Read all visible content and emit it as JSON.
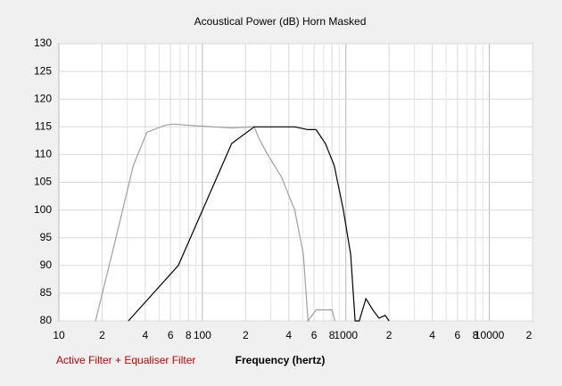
{
  "chart_data": {
    "type": "line",
    "title": "Acoustical Power (dB)   Horn   Masked",
    "xlabel": "Frequency (hertz)",
    "note": "Active Filter + Equaliser Filter",
    "log_x": true,
    "xlim": [
      10,
      20000
    ],
    "ylim": [
      80,
      130
    ],
    "yticks": [
      80,
      85,
      90,
      95,
      100,
      105,
      110,
      115,
      120,
      125,
      130
    ],
    "xticks": [
      10,
      {
        "value": 20,
        "label": "2"
      },
      {
        "value": 40,
        "label": "4"
      },
      {
        "value": 60,
        "label": "6"
      },
      {
        "value": 80,
        "label": "8"
      },
      100,
      {
        "value": 200,
        "label": "2"
      },
      {
        "value": 400,
        "label": "4"
      },
      {
        "value": 600,
        "label": "6"
      },
      {
        "value": 800,
        "label": "8"
      },
      1000,
      {
        "value": 2000,
        "label": "2"
      },
      {
        "value": 4000,
        "label": "4"
      },
      {
        "value": 6000,
        "label": "6"
      },
      {
        "value": 8000,
        "label": "8"
      },
      10000,
      {
        "value": 20000,
        "label": "2"
      }
    ],
    "xgrid_minor": [
      30,
      50,
      70,
      90,
      300,
      500,
      700,
      900,
      3000,
      5000,
      7000,
      9000
    ],
    "grid": true,
    "series": [
      {
        "name": "Active Filter",
        "color": "#a0a0a0",
        "x": [
          18,
          25,
          33,
          41,
          55,
          63,
          90,
          160,
          230,
          247,
          285,
          355,
          440,
          506,
          545,
          620,
          670,
          800,
          840
        ],
        "values": [
          80,
          95,
          108,
          114,
          115.3,
          115.5,
          115.2,
          114.8,
          115,
          113,
          110,
          106,
          100,
          92,
          80,
          82,
          82,
          82,
          80
        ]
      },
      {
        "name": "Equaliser Filter",
        "color": "#000000",
        "x": [
          30.5,
          68,
          160,
          230,
          440,
          545,
          620,
          720,
          830,
          960,
          1080,
          1160,
          1240,
          1380,
          1540,
          1700,
          1880,
          2000
        ],
        "values": [
          80,
          90,
          112,
          115,
          115,
          114.5,
          114.5,
          112,
          108,
          100,
          92,
          80,
          80,
          84,
          82,
          80.5,
          81,
          80
        ]
      }
    ]
  }
}
